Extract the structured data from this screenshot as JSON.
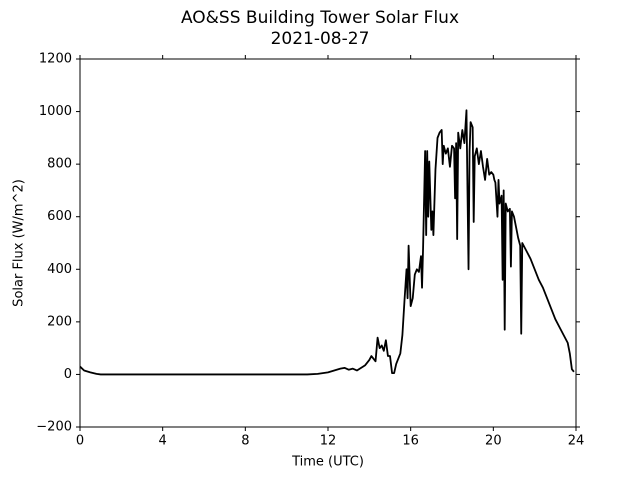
{
  "chart_data": {
    "type": "line",
    "title": "AO&SS Building Tower Solar Flux",
    "subtitle": "2021-08-27",
    "xlabel": "Time (UTC)",
    "ylabel": "Solar Flux (W/m^2)",
    "color": "#000000",
    "xlim": [
      0,
      24
    ],
    "ylim": [
      -200,
      1200
    ],
    "xticks": [
      0,
      4,
      8,
      12,
      16,
      20,
      24
    ],
    "yticks": [
      {
        "value": -200,
        "label": "−200"
      },
      0,
      200,
      400,
      600,
      800,
      1000,
      1200
    ],
    "x": [
      0,
      0.2,
      0.5,
      0.8,
      1,
      3,
      5,
      7,
      9,
      11,
      11.5,
      12,
      12.3,
      12.6,
      12.8,
      13,
      13.2,
      13.4,
      13.6,
      13.8,
      14,
      14.1,
      14.2,
      14.3,
      14.4,
      14.5,
      14.6,
      14.7,
      14.8,
      14.9,
      15,
      15.1,
      15.2,
      15.3,
      15.5,
      15.6,
      15.7,
      15.8,
      15.85,
      15.9,
      16,
      16.1,
      16.2,
      16.3,
      16.4,
      16.5,
      16.55,
      16.6,
      16.7,
      16.75,
      16.8,
      16.85,
      16.9,
      17,
      17.05,
      17.1,
      17.2,
      17.3,
      17.4,
      17.5,
      17.55,
      17.6,
      17.7,
      17.8,
      17.9,
      18,
      18.1,
      18.15,
      18.2,
      18.25,
      18.3,
      18.4,
      18.5,
      18.6,
      18.7,
      18.75,
      18.8,
      18.85,
      18.9,
      19,
      19.05,
      19.1,
      19.2,
      19.3,
      19.4,
      19.5,
      19.6,
      19.7,
      19.8,
      19.9,
      20,
      20.05,
      20.1,
      20.2,
      20.25,
      20.3,
      20.4,
      20.45,
      20.5,
      20.55,
      20.6,
      20.7,
      20.8,
      20.85,
      20.9,
      21,
      21.1,
      21.2,
      21.3,
      21.35,
      21.4,
      21.6,
      21.8,
      22,
      22.2,
      22.4,
      22.6,
      22.8,
      23,
      23.2,
      23.4,
      23.6,
      23.7,
      23.8,
      23.9
    ],
    "values": [
      30,
      15,
      8,
      2,
      0,
      0,
      0,
      0,
      0,
      0,
      2,
      8,
      15,
      22,
      25,
      18,
      22,
      15,
      25,
      35,
      55,
      70,
      60,
      50,
      140,
      100,
      110,
      90,
      130,
      70,
      70,
      5,
      5,
      40,
      80,
      150,
      280,
      400,
      290,
      490,
      260,
      290,
      380,
      400,
      390,
      450,
      330,
      480,
      850,
      530,
      850,
      600,
      810,
      550,
      620,
      530,
      780,
      900,
      920,
      930,
      800,
      870,
      840,
      860,
      790,
      870,
      860,
      670,
      880,
      515,
      920,
      860,
      930,
      880,
      1005,
      700,
      400,
      850,
      960,
      940,
      580,
      830,
      860,
      800,
      850,
      790,
      740,
      820,
      760,
      770,
      760,
      740,
      730,
      600,
      740,
      650,
      680,
      360,
      700,
      170,
      650,
      620,
      630,
      410,
      620,
      600,
      560,
      520,
      490,
      155,
      500,
      470,
      440,
      400,
      360,
      330,
      290,
      250,
      210,
      180,
      150,
      120,
      80,
      20,
      10
    ]
  }
}
